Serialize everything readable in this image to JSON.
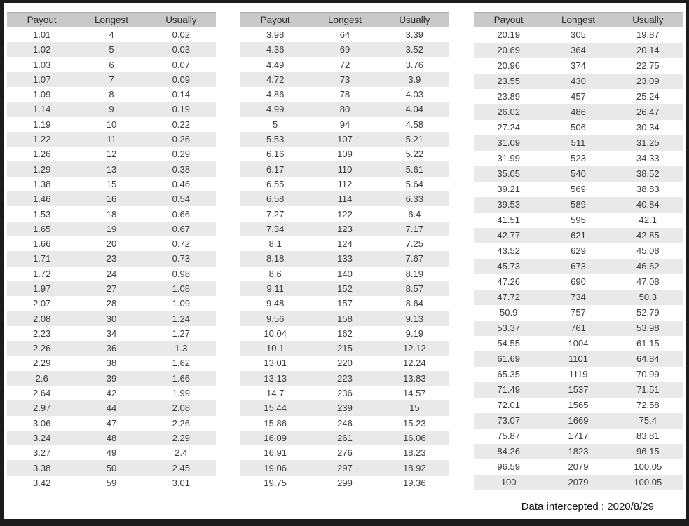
{
  "colors": {
    "frame": "#1c1c1c",
    "page_bg": "#ffffff",
    "header_bg": "#c9c9c9",
    "stripe_bg": "#e9e9e9",
    "text": "#3a3a3a"
  },
  "footer": {
    "label": "Data intercepted : 2020/8/29"
  },
  "tables": [
    {
      "columns": [
        "Payout",
        "Longest",
        "Usually"
      ],
      "rows": [
        [
          "1.01",
          "4",
          "0.02"
        ],
        [
          "1.02",
          "5",
          "0.03"
        ],
        [
          "1.03",
          "6",
          "0.07"
        ],
        [
          "1.07",
          "7",
          "0.09"
        ],
        [
          "1.09",
          "8",
          "0.14"
        ],
        [
          "1.14",
          "9",
          "0.19"
        ],
        [
          "1.19",
          "10",
          "0.22"
        ],
        [
          "1.22",
          "11",
          "0.26"
        ],
        [
          "1.26",
          "12",
          "0.29"
        ],
        [
          "1.29",
          "13",
          "0.38"
        ],
        [
          "1.38",
          "15",
          "0.46"
        ],
        [
          "1.46",
          "16",
          "0.54"
        ],
        [
          "1.53",
          "18",
          "0.66"
        ],
        [
          "1.65",
          "19",
          "0.67"
        ],
        [
          "1.66",
          "20",
          "0.72"
        ],
        [
          "1.71",
          "23",
          "0.73"
        ],
        [
          "1.72",
          "24",
          "0.98"
        ],
        [
          "1.97",
          "27",
          "1.08"
        ],
        [
          "2.07",
          "28",
          "1.09"
        ],
        [
          "2.08",
          "30",
          "1.24"
        ],
        [
          "2.23",
          "34",
          "1.27"
        ],
        [
          "2.26",
          "36",
          "1.3"
        ],
        [
          "2.29",
          "38",
          "1.62"
        ],
        [
          "2.6",
          "39",
          "1.66"
        ],
        [
          "2.64",
          "42",
          "1.99"
        ],
        [
          "2.97",
          "44",
          "2.08"
        ],
        [
          "3.06",
          "47",
          "2.26"
        ],
        [
          "3.24",
          "48",
          "2.29"
        ],
        [
          "3.27",
          "49",
          "2.4"
        ],
        [
          "3.38",
          "50",
          "2.45"
        ],
        [
          "3.42",
          "59",
          "3.01"
        ]
      ]
    },
    {
      "columns": [
        "Payout",
        "Longest",
        "Usually"
      ],
      "rows": [
        [
          "3.98",
          "64",
          "3.39"
        ],
        [
          "4.36",
          "69",
          "3.52"
        ],
        [
          "4.49",
          "72",
          "3.76"
        ],
        [
          "4.72",
          "73",
          "3.9"
        ],
        [
          "4.86",
          "78",
          "4.03"
        ],
        [
          "4.99",
          "80",
          "4.04"
        ],
        [
          "5",
          "94",
          "4.58"
        ],
        [
          "5.53",
          "107",
          "5.21"
        ],
        [
          "6.16",
          "109",
          "5.22"
        ],
        [
          "6.17",
          "110",
          "5.61"
        ],
        [
          "6.55",
          "112",
          "5.64"
        ],
        [
          "6.58",
          "114",
          "6.33"
        ],
        [
          "7.27",
          "122",
          "6.4"
        ],
        [
          "7.34",
          "123",
          "7.17"
        ],
        [
          "8.1",
          "124",
          "7.25"
        ],
        [
          "8.18",
          "133",
          "7.67"
        ],
        [
          "8.6",
          "140",
          "8.19"
        ],
        [
          "9.11",
          "152",
          "8.57"
        ],
        [
          "9.48",
          "157",
          "8.64"
        ],
        [
          "9.56",
          "158",
          "9.13"
        ],
        [
          "10.04",
          "162",
          "9.19"
        ],
        [
          "10.1",
          "215",
          "12.12"
        ],
        [
          "13.01",
          "220",
          "12.24"
        ],
        [
          "13.13",
          "223",
          "13.83"
        ],
        [
          "14.7",
          "236",
          "14.57"
        ],
        [
          "15.44",
          "239",
          "15"
        ],
        [
          "15.86",
          "246",
          "15.23"
        ],
        [
          "16.09",
          "261",
          "16.06"
        ],
        [
          "16.91",
          "276",
          "18.23"
        ],
        [
          "19.06",
          "297",
          "18.92"
        ],
        [
          "19.75",
          "299",
          "19.36"
        ]
      ]
    },
    {
      "columns": [
        "Payout",
        "Longest",
        "Usually"
      ],
      "rows": [
        [
          "20.19",
          "305",
          "19.87"
        ],
        [
          "20.69",
          "364",
          "20.14"
        ],
        [
          "20.96",
          "374",
          "22.75"
        ],
        [
          "23.55",
          "430",
          "23.09"
        ],
        [
          "23.89",
          "457",
          "25.24"
        ],
        [
          "26.02",
          "486",
          "26.47"
        ],
        [
          "27.24",
          "506",
          "30.34"
        ],
        [
          "31.09",
          "511",
          "31.25"
        ],
        [
          "31.99",
          "523",
          "34.33"
        ],
        [
          "35.05",
          "540",
          "38.52"
        ],
        [
          "39.21",
          "569",
          "38.83"
        ],
        [
          "39.53",
          "589",
          "40.84"
        ],
        [
          "41.51",
          "595",
          "42.1"
        ],
        [
          "42.77",
          "621",
          "42.85"
        ],
        [
          "43.52",
          "629",
          "45.08"
        ],
        [
          "45.73",
          "673",
          "46.62"
        ],
        [
          "47.26",
          "690",
          "47.08"
        ],
        [
          "47.72",
          "734",
          "50.3"
        ],
        [
          "50.9",
          "757",
          "52.79"
        ],
        [
          "53.37",
          "761",
          "53.98"
        ],
        [
          "54.55",
          "1004",
          "61.15"
        ],
        [
          "61.69",
          "1101",
          "64.84"
        ],
        [
          "65.35",
          "1119",
          "70.99"
        ],
        [
          "71.49",
          "1537",
          "71.51"
        ],
        [
          "72.01",
          "1565",
          "72.58"
        ],
        [
          "73.07",
          "1669",
          "75.4"
        ],
        [
          "75.87",
          "1717",
          "83.81"
        ],
        [
          "84.26",
          "1823",
          "96.15"
        ],
        [
          "96.59",
          "2079",
          "100.05"
        ],
        [
          "100",
          "2079",
          "100.05"
        ]
      ]
    }
  ]
}
